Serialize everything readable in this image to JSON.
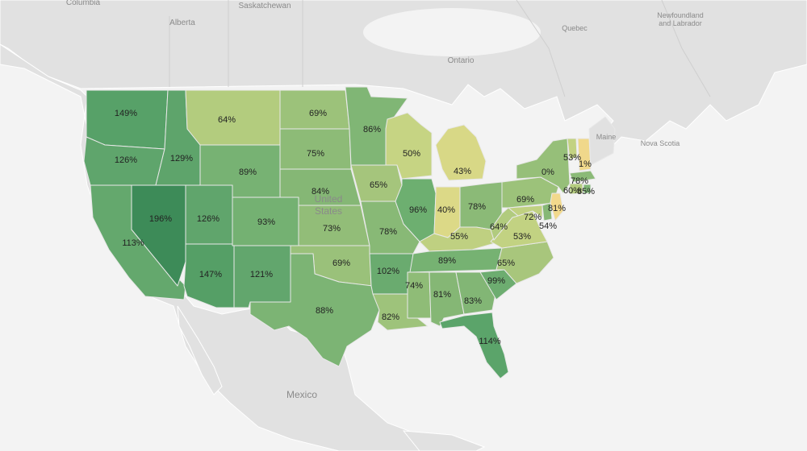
{
  "base_labels": {
    "columbia": "Columbia",
    "saskatchewan": "Saskatchewan",
    "alberta": "Alberta",
    "quebec": "Quebec",
    "ontario": "Ontario",
    "newfoundland_1": "Newfoundland",
    "newfoundland_2": "and Labrador",
    "maine": "Maine",
    "nova_scotia": "Nova Scotia",
    "mexico": "Mexico",
    "united": "United",
    "states": "States"
  },
  "states": [
    {
      "abbr": "WA",
      "label": "149%",
      "fill": "#57a168"
    },
    {
      "abbr": "OR",
      "label": "126%",
      "fill": "#5fa56c"
    },
    {
      "abbr": "CA",
      "label": "113%",
      "fill": "#64a86d"
    },
    {
      "abbr": "ID",
      "label": "129%",
      "fill": "#5ea46b"
    },
    {
      "abbr": "NV",
      "label": "196%",
      "fill": "#3d8b58"
    },
    {
      "abbr": "MT",
      "label": "64%",
      "fill": "#b3cc7e"
    },
    {
      "abbr": "WY",
      "label": "89%",
      "fill": "#77b273"
    },
    {
      "abbr": "UT",
      "label": "126%",
      "fill": "#60a56c"
    },
    {
      "abbr": "AZ",
      "label": "147%",
      "fill": "#559f66"
    },
    {
      "abbr": "CO",
      "label": "93%",
      "fill": "#74b172"
    },
    {
      "abbr": "NM",
      "label": "121%",
      "fill": "#62a66d"
    },
    {
      "abbr": "ND",
      "label": "69%",
      "fill": "#9cc27a"
    },
    {
      "abbr": "SD",
      "label": "75%",
      "fill": "#8dbb77"
    },
    {
      "abbr": "NE",
      "label": "84%",
      "fill": "#85b775"
    },
    {
      "abbr": "KS",
      "label": "73%",
      "fill": "#92bd78"
    },
    {
      "abbr": "OK",
      "label": "69%",
      "fill": "#9ac17a"
    },
    {
      "abbr": "TX",
      "label": "88%",
      "fill": "#7cb474"
    },
    {
      "abbr": "MN",
      "label": "86%",
      "fill": "#80b675"
    },
    {
      "abbr": "IA",
      "label": "65%",
      "fill": "#a5c57c"
    },
    {
      "abbr": "MO",
      "label": "78%",
      "fill": "#88b976"
    },
    {
      "abbr": "AR",
      "label": "102%",
      "fill": "#6aab6f"
    },
    {
      "abbr": "LA",
      "label": "82%",
      "fill": "#9ec37b"
    },
    {
      "abbr": "WI",
      "label": "50%",
      "fill": "#c6d483"
    },
    {
      "abbr": "IL",
      "label": "96%",
      "fill": "#6daf70"
    },
    {
      "abbr": "MI",
      "label": "43%",
      "fill": "#d8d886"
    },
    {
      "abbr": "IN",
      "label": "40%",
      "fill": "#dcd987"
    },
    {
      "abbr": "OH",
      "label": "78%",
      "fill": "#8bba77"
    },
    {
      "abbr": "KY",
      "label": "55%",
      "fill": "#bfd081"
    },
    {
      "abbr": "TN",
      "label": "89%",
      "fill": "#76b272"
    },
    {
      "abbr": "MS",
      "label": "74%",
      "fill": "#8fbc77"
    },
    {
      "abbr": "AL",
      "label": "81%",
      "fill": "#85b775"
    },
    {
      "abbr": "GA",
      "label": "83%",
      "fill": "#82b675"
    },
    {
      "abbr": "FL",
      "label": "114%",
      "fill": "#5ba46a"
    },
    {
      "abbr": "SC",
      "label": "99%",
      "fill": "#6dad70"
    },
    {
      "abbr": "NC",
      "label": "65%",
      "fill": "#a8c67c"
    },
    {
      "abbr": "VA",
      "label": "53%",
      "fill": "#c2d282"
    },
    {
      "abbr": "WV",
      "label": "64%",
      "fill": "#b1cb7e"
    },
    {
      "abbr": "PA",
      "label": "69%",
      "fill": "#9cc27a"
    },
    {
      "abbr": "NY",
      "label": "72%",
      "fill": "#96bf79"
    },
    {
      "abbr": "MD",
      "label": "54%",
      "fill": "#c0d181"
    },
    {
      "abbr": "DE",
      "label": "81%",
      "fill": "#86b876"
    },
    {
      "abbr": "NJ",
      "label": "0%",
      "fill": "#f2d98c"
    },
    {
      "abbr": "VT",
      "label": "53%",
      "fill": "#c3d282"
    },
    {
      "abbr": "NH",
      "label": "1%",
      "fill": "#f0d88b"
    },
    {
      "abbr": "MA",
      "label": "78%",
      "fill": "#8bba77"
    },
    {
      "abbr": "CT",
      "label": "60%",
      "fill": "#b5cd7f"
    },
    {
      "abbr": "RI",
      "label": "85%",
      "fill": "#7fb675"
    }
  ]
}
